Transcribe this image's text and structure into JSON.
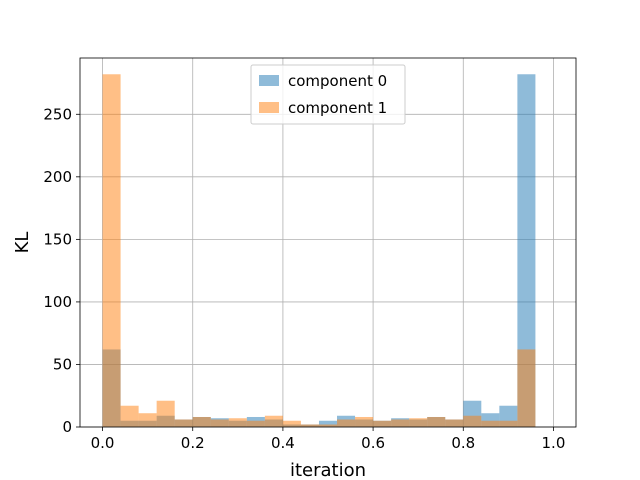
{
  "chart_data": {
    "type": "bar",
    "subtype": "histogram",
    "xlabel": "iteration",
    "ylabel": "KL",
    "xlim": [
      -0.05,
      1.05
    ],
    "ylim": [
      0,
      295
    ],
    "bins": 25,
    "bin_range": [
      0,
      1
    ],
    "grid": true,
    "legend_position": "top-center",
    "x_ticks": [
      "0.0",
      "0.2",
      "0.4",
      "0.6",
      "0.8",
      "1.0"
    ],
    "y_ticks": [
      "0",
      "50",
      "100",
      "150",
      "200",
      "250"
    ],
    "series": [
      {
        "name": "component 0",
        "color": "#1f77b4",
        "opacity": 0.5,
        "values": [
          62,
          5,
          5,
          9,
          6,
          8,
          7,
          5,
          8,
          6,
          2,
          2,
          5,
          9,
          6,
          5,
          7,
          6,
          8,
          6,
          21,
          11,
          17,
          282,
          0
        ]
      },
      {
        "name": "component 1",
        "color": "#ff7f0e",
        "opacity": 0.5,
        "values": [
          282,
          17,
          11,
          21,
          6,
          8,
          6,
          7,
          5,
          9,
          5,
          2,
          2,
          6,
          8,
          5,
          6,
          7,
          8,
          6,
          9,
          5,
          5,
          62,
          0
        ]
      }
    ]
  }
}
